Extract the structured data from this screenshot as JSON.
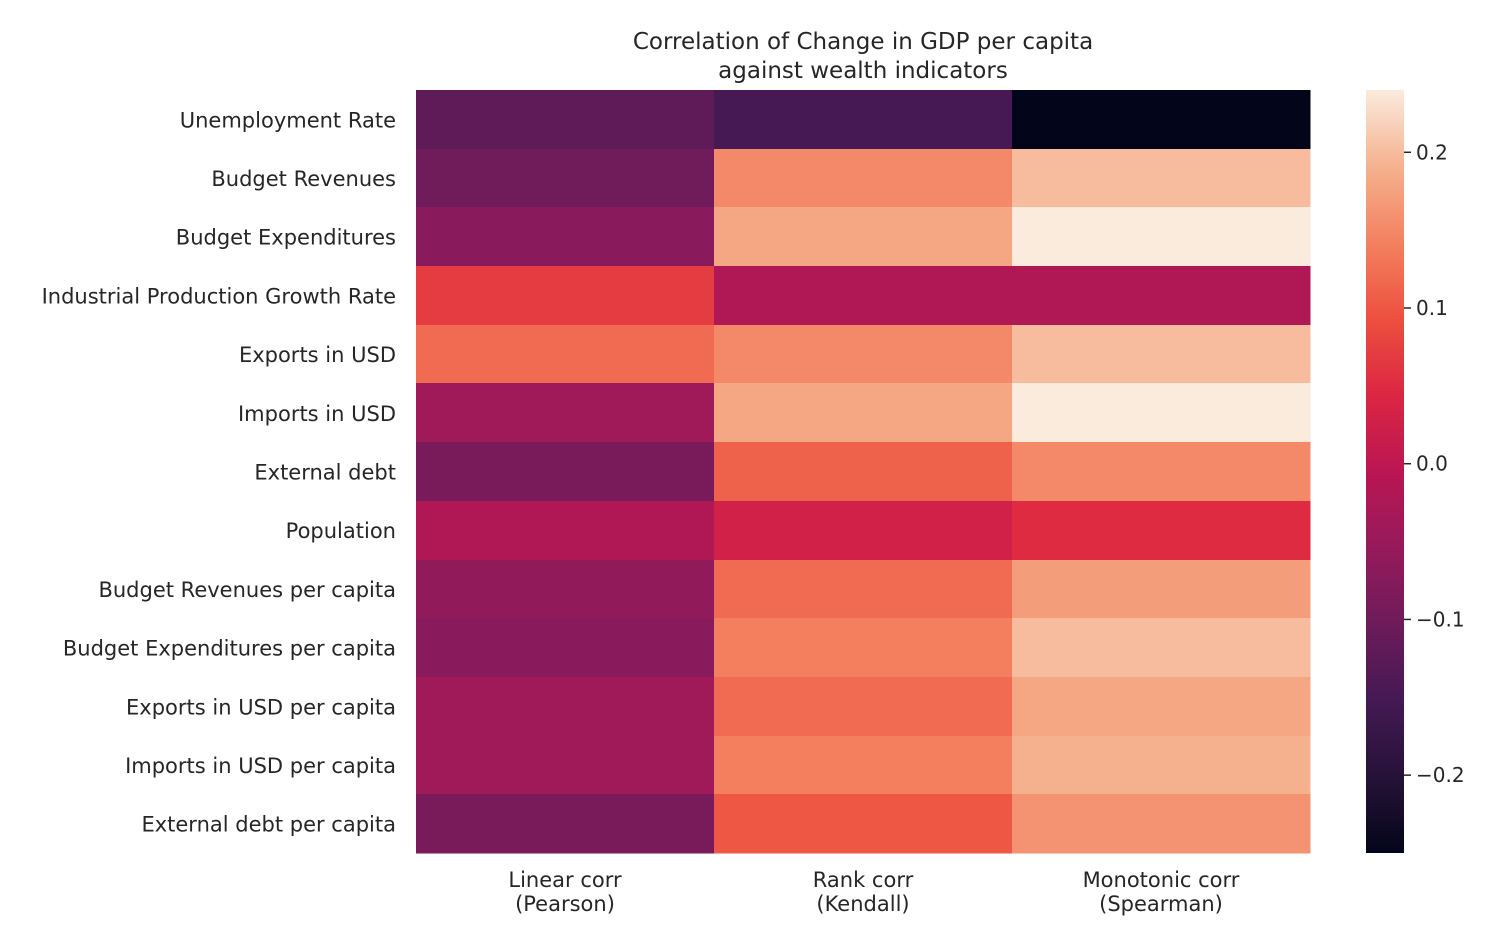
{
  "chart_data": {
    "type": "heatmap",
    "title": [
      "Correlation of Change in GDP per capita",
      "against wealth indicators"
    ],
    "rows": [
      "Unemployment Rate",
      "Budget Revenues",
      "Budget Expenditures",
      "Industrial Production Growth Rate",
      "Exports in USD",
      "Imports in USD",
      "External debt",
      "Population",
      "Budget Revenues per capita",
      "Budget Expenditures per capita",
      "Exports in USD per capita",
      "Imports in USD per capita",
      "External debt per capita"
    ],
    "columns": [
      [
        "Linear corr",
        "(Pearson)"
      ],
      [
        "Rank corr",
        "(Kendall)"
      ],
      [
        "Monotonic corr",
        "(Spearman)"
      ]
    ],
    "values": [
      [
        -0.12,
        -0.15,
        -0.25
      ],
      [
        -0.1,
        0.15,
        0.2
      ],
      [
        -0.07,
        0.18,
        0.24
      ],
      [
        0.07,
        -0.02,
        -0.02
      ],
      [
        0.12,
        0.15,
        0.2
      ],
      [
        -0.04,
        0.18,
        0.24
      ],
      [
        -0.09,
        0.11,
        0.15
      ],
      [
        -0.02,
        0.03,
        0.05
      ],
      [
        -0.06,
        0.12,
        0.17
      ],
      [
        -0.07,
        0.14,
        0.2
      ],
      [
        -0.04,
        0.12,
        0.18
      ],
      [
        -0.04,
        0.14,
        0.19
      ],
      [
        -0.09,
        0.1,
        0.16
      ]
    ],
    "vmin": -0.25,
    "vmax": 0.24,
    "colormap": "rocket",
    "colorbar_ticks": [
      0.2,
      0.1,
      0.0,
      -0.1,
      -0.2
    ],
    "colorbar_tick_labels": [
      "0.2",
      "0.1",
      "0.0",
      "−0.1",
      "−0.2"
    ],
    "grid": false,
    "legend": "colorbar-right"
  }
}
